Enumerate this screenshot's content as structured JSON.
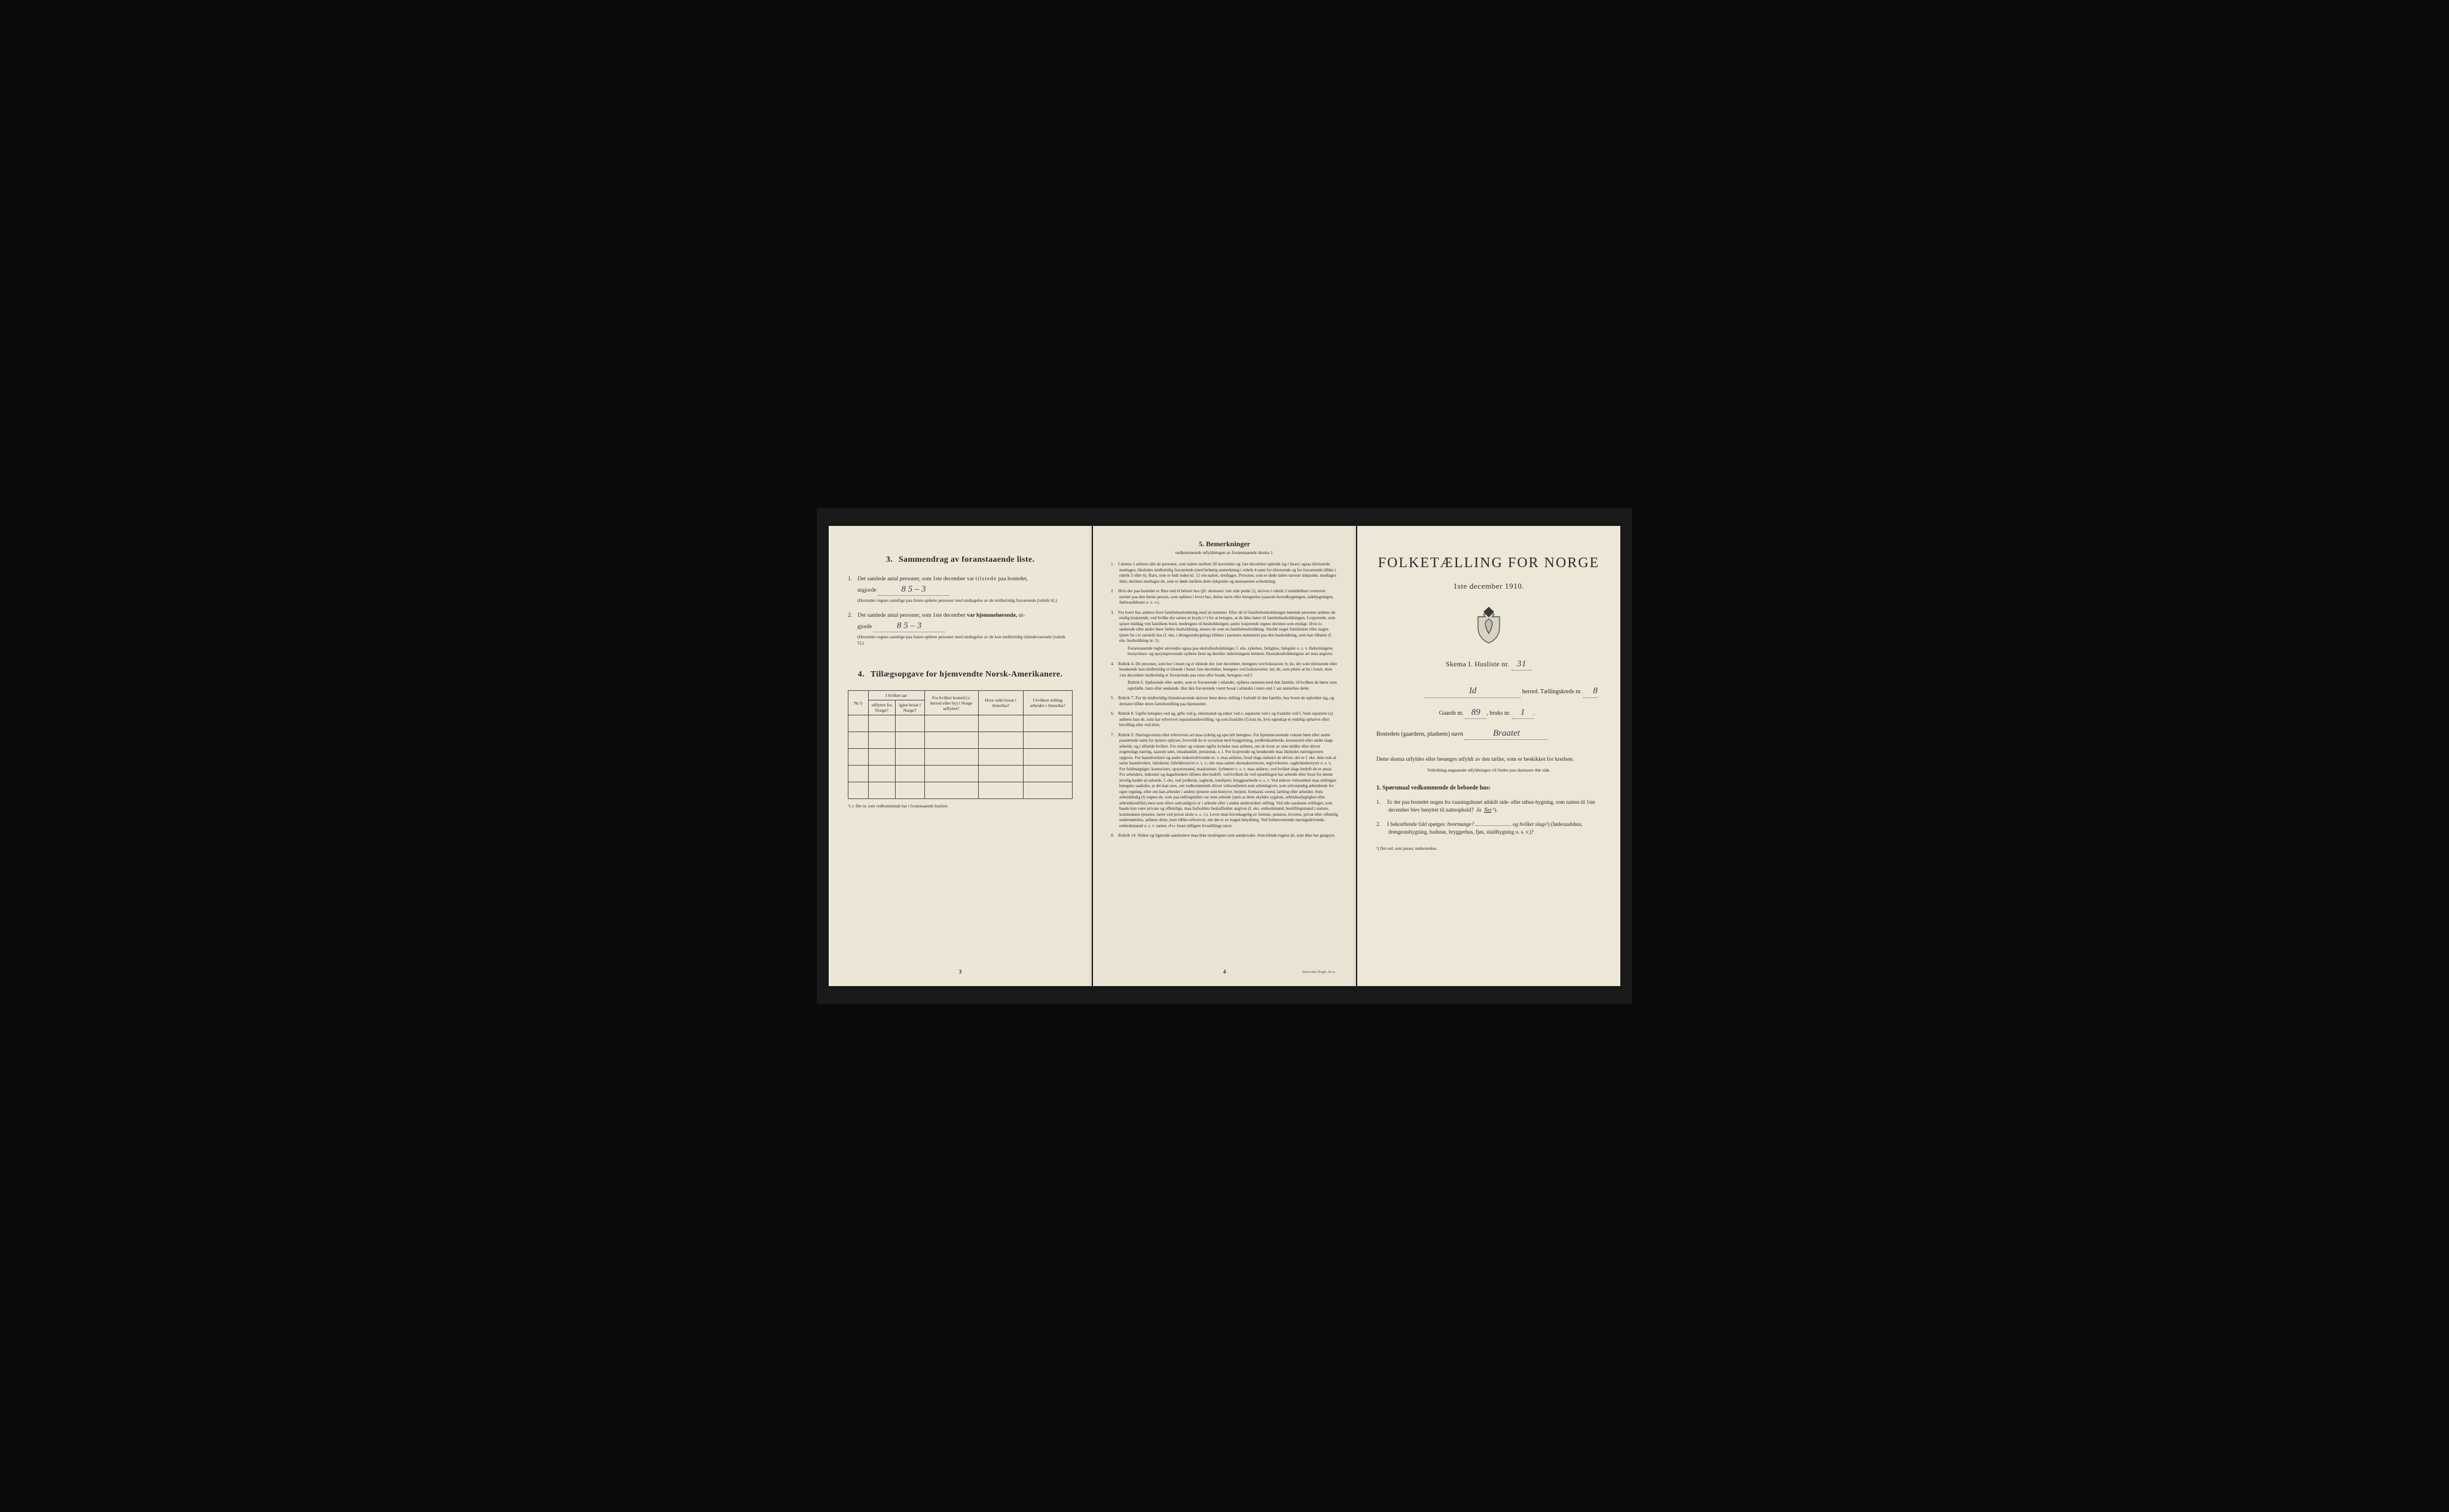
{
  "colors": {
    "background": "#0a0a0a",
    "paper": "#ebe5d6",
    "text": "#2a2a2a",
    "handwriting": "#3a3a4a"
  },
  "leftPage": {
    "section3": {
      "number": "3.",
      "title": "Sammendrag av foranstaaende liste.",
      "item1": {
        "num": "1.",
        "textA": "Det samlede antal personer, som 1ste december var",
        "textB": "tilstede",
        "textC": "paa bostedet,",
        "utgjorde": "utgjorde",
        "value": "8   5 – 3",
        "note": "(Herunder regnes samtlige paa listen opførte personer med undtagelse av de midlertidig fraværende [rubrik 6].)"
      },
      "item2": {
        "num": "2.",
        "textA": "Det samlede antal personer, som 1ste december",
        "textB": "var hjemmehørende,",
        "textC": "ut-",
        "gjorde": "gjorde",
        "value": "8   5 – 3",
        "note": "(Herunder regnes samtlige paa listen opførte personer med undtagelse av de kun midlertidig tilstedeværende [rubrik 5].)"
      }
    },
    "section4": {
      "number": "4.",
      "title": "Tillægsopgave for hjemvendte Norsk-Amerikanere.",
      "headers": {
        "nr": "Nr.¹)",
        "col1a": "I hvilket aar",
        "col1b": "utflyttet fra Norge?",
        "col1c": "igjen bosat i Norge?",
        "col2": "Fra hvilket bosted (ɔ: herred eller by) i Norge utflyttet?",
        "col3": "Hvor sidst bosat i Amerika?",
        "col4": "I hvilken stilling arbeidet i Amerika?"
      },
      "footnote": "¹) ɔ: Det nr. som vedkommende har i foranstaaende husliste."
    },
    "pageNum": "3"
  },
  "centerPage": {
    "title": "5.  Bemerkninger",
    "subtitle": "vedkommende utfyldningen av foranstaaende skema 1.",
    "remarks": [
      {
        "n": "1.",
        "text": "I skema 1 anføres alle de personer, som natten mellem 30 november og 1ste december opholdt sig i huset; ogsaa tilreisende medtages; likeledes midlertidig fraværende (med behørig anmerkning i rubrik 4 samt for tilreisende og for fraværende tillike i rubrik 5 eller 6). Barn, som er født inden kl. 12 om natten, medtages. Personer, som er døde inden nævnte tidspunkt, medtages ikke; derimot medtages de, som er døde mellem dette tidspunkt og skemaernes avhentning."
      },
      {
        "n": "2.",
        "text": "Hvis der paa bostedet er flere end ét beboet hus (jfr. skemaets 1ste side punkt 2), skrives i rubrik 2 umiddelbart ovenover navnet paa den første person, som opføres i hvert hus, dettes navn eller betegnelse (saasom hovedbygningen, sidebygningen, føderaadshuset o. s. v.)."
      },
      {
        "n": "3.",
        "text": "For hvert hus anføres hver familiehusholdning med sit nummer. Efter de til familiehusholdningen hørende personer anføres de enslig losjerende, ved hvilke der sættes et kryds (×) for at betegne, at de ikke hører til familiehusholdningen. Losjerende, som spiser middag ved familiens bord, medregnes til husholdningen; andre losjerende regnes derimot som enslige. Hvis to søskende eller andre fører fælles husholdning, ansees de som en familiehusholdning. Skulde noget familielem eller nogen tjener bo i et særskilt hus (f. eks. i drengestubygning) tilføies i parentes nummeret paa den husholdning, som han tilhører (f. eks. husholdning nr. 1).",
        "sub": "Foranstaaende regler anvendes ogsaa paa ekstrahusholdninger, f. eks. sykehus, fattighus, fængsler o. s. v. Indretningens bestyrelses- og opsynspersonale opføres først og derefter indretningens lemmer. Ekstrahusholdningens art maa angives."
      },
      {
        "n": "4.",
        "text": "Rubrik 4. De personer, som bor i huset og er tilstede der 1ste december, betegnes ved bokstaven: b; de, der som tilreisende eller besøkende kun midlertidig er tilstede i huset 1ste december, betegnes ved bokstaverne: mt; de, som pleier at bo i huset, men 1ste december midlertidig er fraværende paa reise eller besøk, betegnes ved f.",
        "sub": "Rubrik 6. Sjøfarende eller andre, som er fraværende i utlandet, opføres sammen med den familie, til hvilken de hører som egtefælle, barn eller søskende. Har den fraværende været bosat i utlandet i mere end 1 aar anmerkes dette."
      },
      {
        "n": "5.",
        "text": "Rubrik 7. For de midlertidig tilstedeværende skrives først deres stilling i forhold til den familie, hos hvem de opholder sig, og dernæst tillike deres familiestilling paa hjemstedet."
      },
      {
        "n": "6.",
        "text": "Rubrik 8. Ugifte betegnes ved ug, gifte ved g, enkemænd og enker ved e, separerte ved s og fraskilte ved f. Som separerte (s) anføres kun de, som har erhvervet separationsbevilling, og som fraskilte (f) kun de, hvis egteskap er endelig ophævet efter bevilling eller ved dom."
      },
      {
        "n": "7.",
        "text": "Rubrik 9. Næringsveiens eller erhvervets art maa tydelig og specielt betegnes. For hjemmeværende voksne børn eller andre paarørende samt for tjenere oplyses, hvorvidt de er sysselsat med husgjerning, jordbruksarbeide, kreaturstel eller andet slags arbeide, og i tilfælde hvilket. For enker og voksne ugifte kvinder maa anføres, om de lever av sine midler eller driver nogenslags næring, saasom søm, smaahandel, pensionat, o. l. For losjerende og besøkende maa likeledes næringsveien opgives. For haandverkere og andre industridrivende m. v. maa anføres, hvad slags industri de driver; det er f. eks. ikke nok at sætte haandverker, fabrikeier, fabrikbestyrer o. s. v.; der maa sættes skomakermester, teglverkseier, sagbruksbestyrer o. s. v. For fuldmægtiger, kontorister, opsynsmænd, maskinister, fyrbøtere o. s. v. maa anføres, ved hvilket slags bedrift de er ansat. For arbeidere, inderster og dagarbeidere tilføies den bedrift, ved hvilken de ved optællingen har arbeide eller forut for denne jevnlig hadde sit arbeide, f. eks. ved jordbruk, sagbruk, træsliperi, bryggearbeide o. s. v. Ved enhver virksomhet maa stillingen betegnes saaledes, at det kan sees, om vedkommende driver virksomheten som arbeidsgiver, som selvstændig arbeidende for egen regning, eller om han arbeider i andres tjeneste som bestyrer, betjent, formand, svend, lærling eller arbeider. Som arbeidsledig (l) regnes de, som paa tællingstiden var uten arbeide (uten at dette skyldes sygdom, arbeidsudygtighet eller arbeidskonflikt) men som ellers sedvanligvis er i arbeide eller i anden underordnet stilling. Ved alle saadanne stillinger, som baade kan være private og offentlige, maa forholdets beskaffenhet angives (f. eks. embedsmand, bestillingsmand i statens, kommunens tjeneste, lærer ved privat skole o. s. v.). Lever man hovedsagelig av formue, pension, livrente, privat eller offentlig understøttelse, anføres dette, men tillike erhvervet, om det er av nogen betydning. Ved forhenværende næringsdrivende, embedsmænd o. s. v. sættes «fv» foran tidligere livsstillings navn."
      },
      {
        "n": "8.",
        "text": "Rubrik 14. Sinker og lignende aandssløve maa ikke medregnes som aandssvake. Som blinde regnes de, som ikke har gangsyn."
      }
    ],
    "pageNum": "4",
    "printer": "Steen'ske Bogtr.  Kr.a."
  },
  "rightPage": {
    "mainTitle": "FOLKETÆLLING FOR NORGE",
    "date": "1ste december 1910.",
    "skemaLabel": "Skema I.  Husliste nr.",
    "skemaValue": "31",
    "herredLabel": "herred.  Tællingskreds nr.",
    "herredValue": "Id",
    "kredsValue": "8",
    "gaardsLabel": "Gaards nr.",
    "gaardsValue": "89",
    "bruksLabel": "bruks nr.",
    "bruksValue": "1",
    "bostedLabel": "Bostedets (gaardens, pladsens) navn",
    "bostedValue": "Braatet",
    "intro": "Dette skema utfyldes eller besørges utfyldt av den tæller, som er beskikket for kredsen.",
    "veiledning": "Veiledning angaaende utfyldningen vil findes paa skemaets 4de side.",
    "qHeader": "1. Spørsmaal vedkommende de beboede hus:",
    "q1": {
      "n": "1.",
      "text": "Er der paa bostedet nogen fra vaaningshuset adskilt side- eller uthus-bygning, som natten til 1ste december blev benyttet til natteophold?",
      "ja": "Ja",
      "nei": "Nei",
      "sup": "¹)."
    },
    "q2": {
      "n": "2.",
      "text": "I bekræftende fald spørges:",
      "hvor": "hvormange?",
      "og": "og hvilket slags",
      "sup": "¹)",
      "paren": "(føderaadshus, drengestubygning, badstue, bryggerhus, fjøs, staldbygning o. s. v.)?"
    },
    "footnote": "¹) Det ord, som passer, understrekes."
  }
}
